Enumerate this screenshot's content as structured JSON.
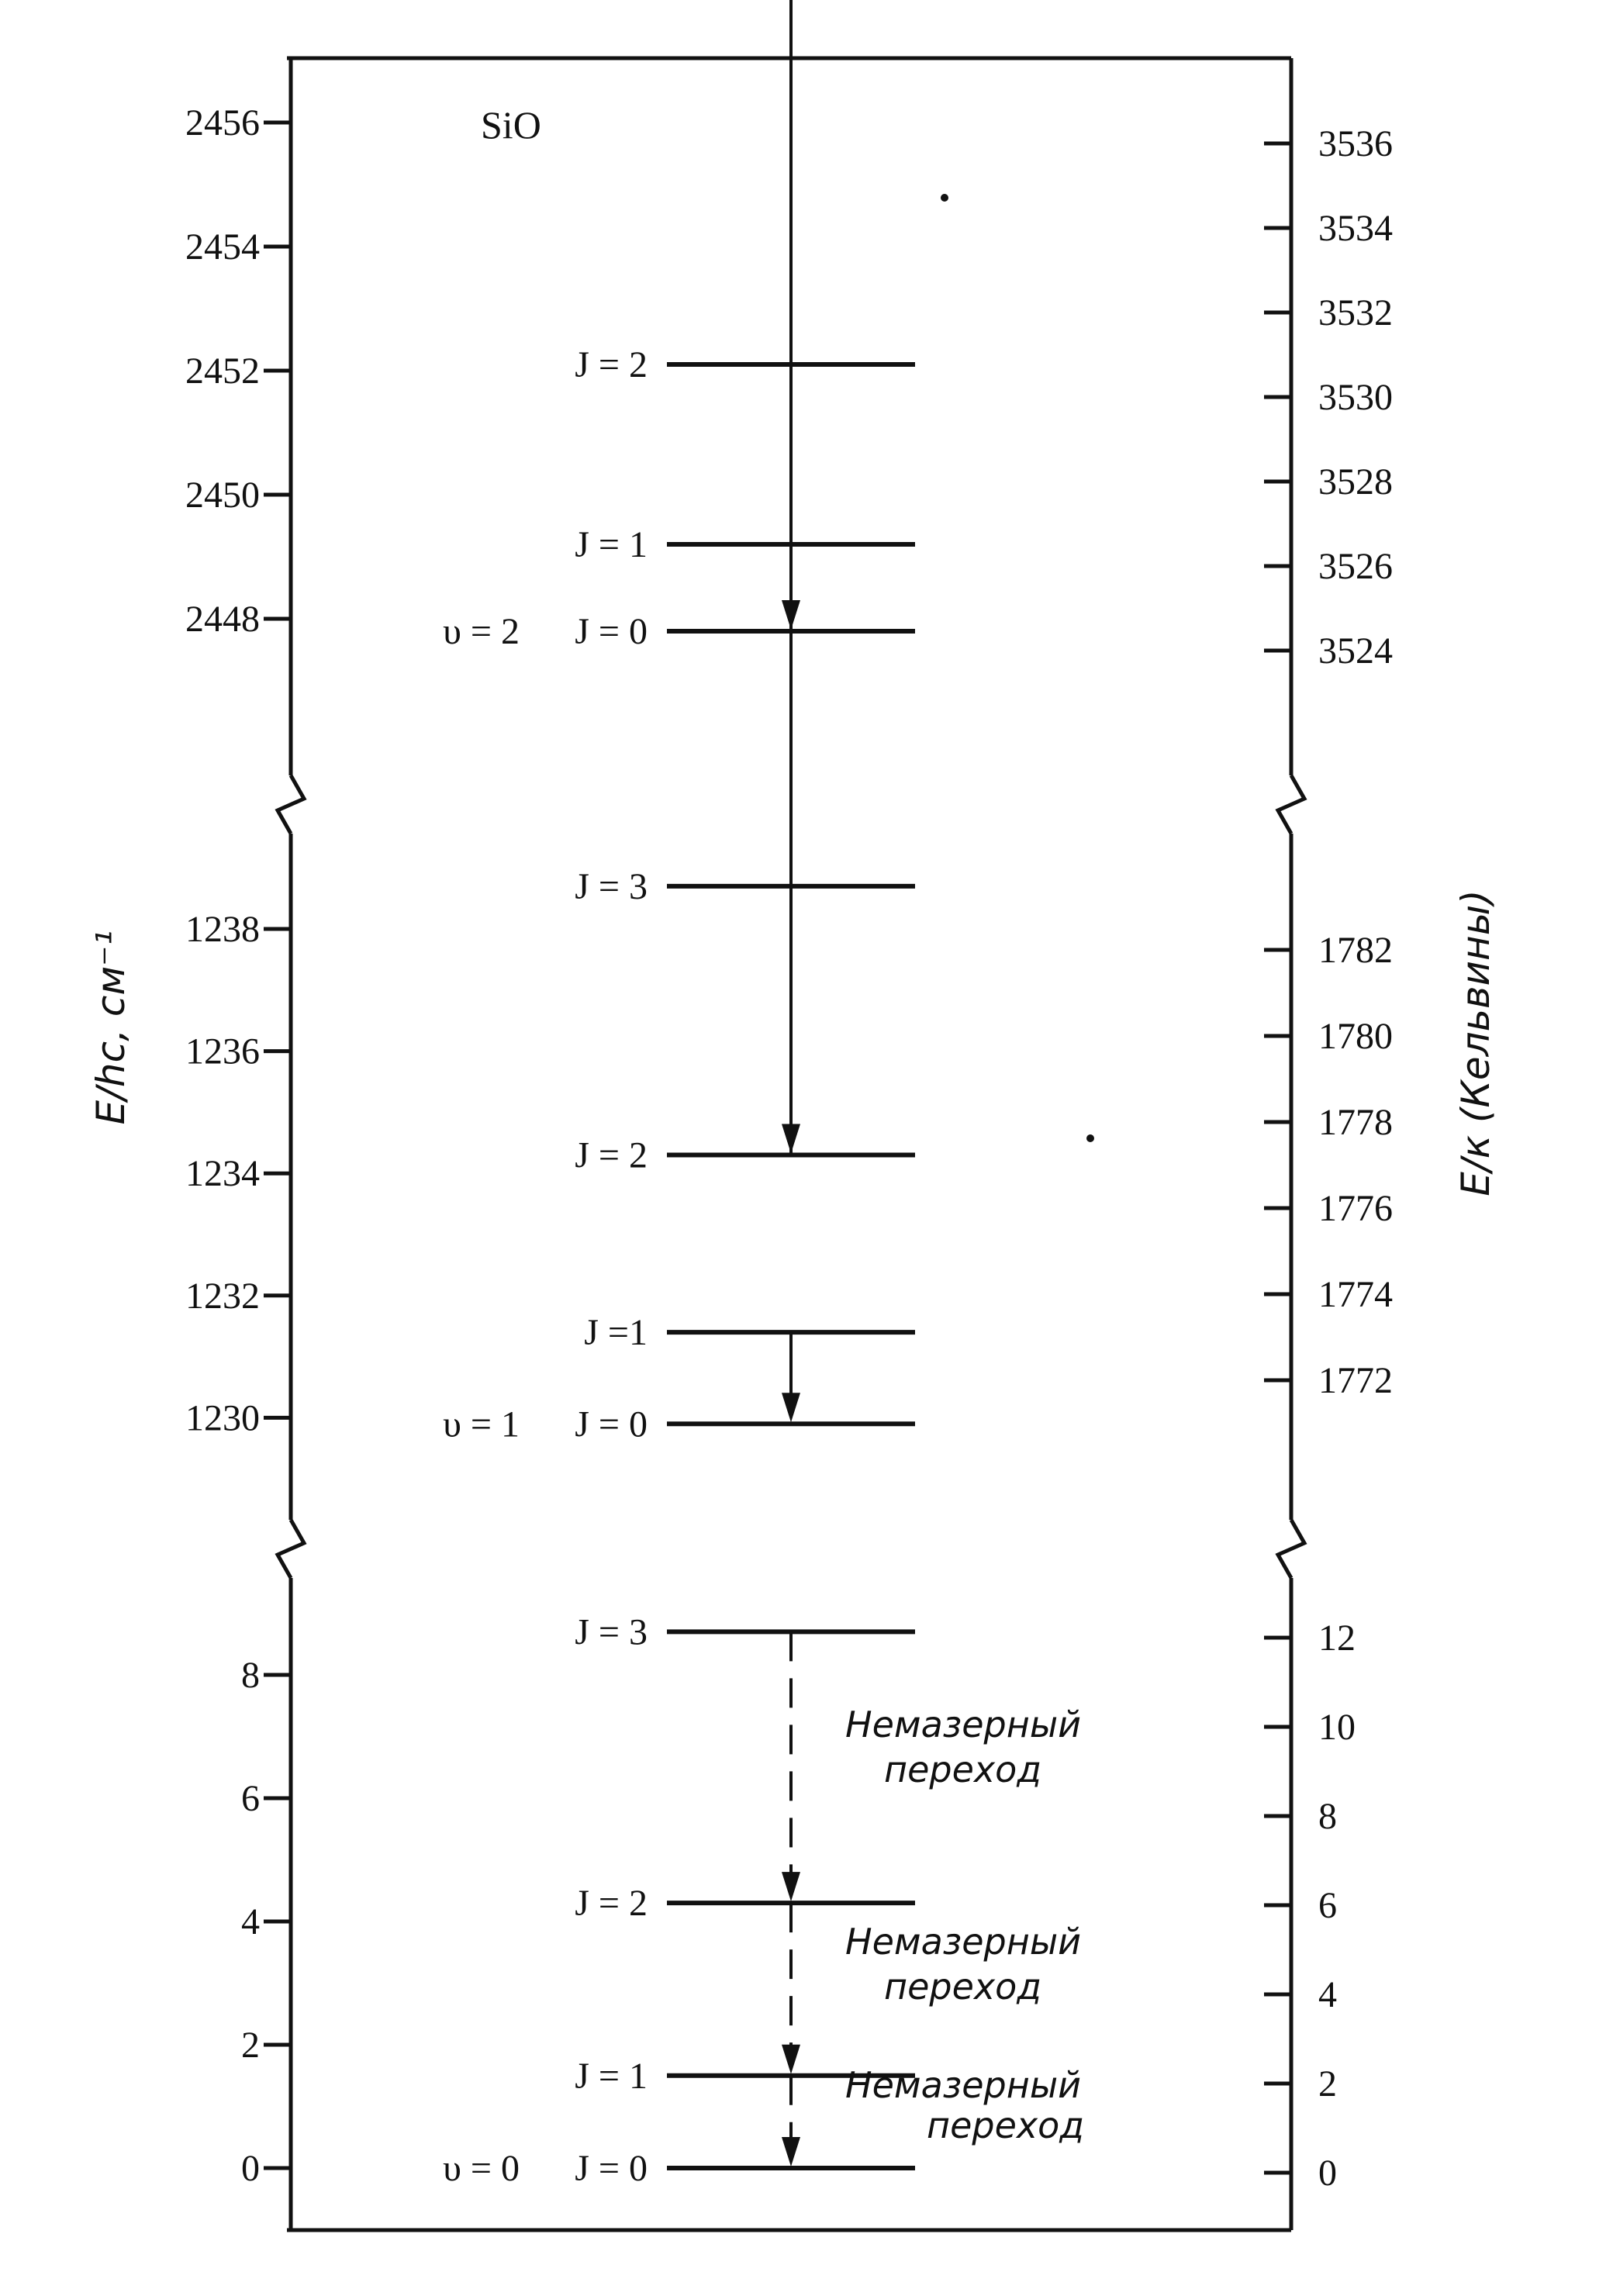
{
  "molecule": "SiO",
  "left_axis_title": "E/hc, см⁻¹",
  "right_axis_title": "E/к (Кельвины)",
  "left_ticks": {
    "v2": [
      "2456",
      "2454",
      "2452",
      "2450",
      "2448"
    ],
    "v1": [
      "1238",
      "1236",
      "1234",
      "1232",
      "1230"
    ],
    "v0": [
      "8",
      "6",
      "4",
      "2",
      "0"
    ]
  },
  "right_ticks": {
    "v2": [
      "3536",
      "3534",
      "3532",
      "3530",
      "3528",
      "3526",
      "3524"
    ],
    "v1": [
      "1782",
      "1780",
      "1778",
      "1776",
      "1774",
      "1772"
    ],
    "v0": [
      "12",
      "10",
      "8",
      "6",
      "4",
      "2",
      "0"
    ]
  },
  "levels": {
    "v2": [
      {
        "label": "J = 2",
        "energy_cm": 2452.1
      },
      {
        "label": "J = 1",
        "energy_cm": 2449.2
      },
      {
        "label": "J = 0",
        "energy_cm": 2447.8,
        "v_label": "υ = 2"
      }
    ],
    "v1": [
      {
        "label": "J = 3",
        "energy_cm": 1238.7
      },
      {
        "label": "J = 2",
        "energy_cm": 1234.3
      },
      {
        "label": "J =1",
        "energy_cm": 1231.4
      },
      {
        "label": "J = 0",
        "energy_cm": 1229.9,
        "v_label": "υ = 1"
      }
    ],
    "v0": [
      {
        "label": "J = 3",
        "energy_cm": 8.7
      },
      {
        "label": "J = 2",
        "energy_cm": 4.3
      },
      {
        "label": "J = 1",
        "energy_cm": 1.5
      },
      {
        "label": "J = 0",
        "energy_cm": 0.0,
        "v_label": "υ = 0"
      }
    ]
  },
  "transitions": {
    "v2": [
      {
        "from": "J = 1",
        "to": "J = 0",
        "style": "solid"
      }
    ],
    "v1": [
      {
        "from": "J = 3",
        "to": "J = 2",
        "style": "solid"
      },
      {
        "from": "J = 2",
        "to": "J = 1",
        "style": "solid"
      },
      {
        "from": "J =1",
        "to": "J = 0",
        "style": "solid"
      }
    ],
    "v0": [
      {
        "from": "J = 3",
        "to": "J = 2",
        "style": "dashed"
      },
      {
        "from": "J = 2",
        "to": "J = 1",
        "style": "dashed"
      },
      {
        "from": "J = 1",
        "to": "J = 0",
        "style": "dashed"
      }
    ]
  },
  "notes": {
    "n1": [
      "Немазерный",
      "переход"
    ],
    "n2": [
      "Немазерный",
      "переход"
    ],
    "n3": [
      "Немазерный",
      "переход"
    ]
  }
}
